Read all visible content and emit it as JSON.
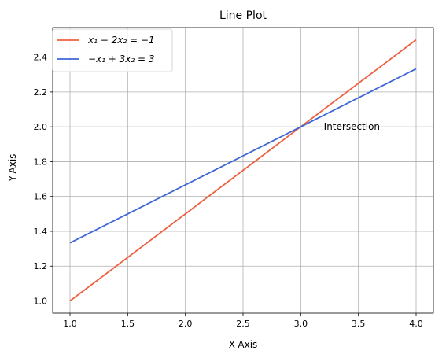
{
  "chart_data": {
    "type": "line",
    "title": "Line Plot",
    "xlabel": "X-Axis",
    "ylabel": "Y-Axis",
    "xlim": [
      0.85,
      4.15
    ],
    "ylim": [
      0.93,
      2.57
    ],
    "x_ticks": [
      1.0,
      1.5,
      2.0,
      2.5,
      3.0,
      3.5,
      4.0
    ],
    "y_ticks": [
      1.0,
      1.2,
      1.4,
      1.6,
      1.8,
      2.0,
      2.2,
      2.4
    ],
    "x_tick_labels": [
      "1.0",
      "1.5",
      "2.0",
      "2.5",
      "3.0",
      "3.5",
      "4.0"
    ],
    "y_tick_labels": [
      "1.0",
      "1.2",
      "1.4",
      "1.6",
      "1.8",
      "2.0",
      "2.2",
      "2.4"
    ],
    "grid": true,
    "legend_position": "top-left",
    "series": [
      {
        "name": "x₁ − 2x₂ = −1",
        "color": "#f05f40",
        "x": [
          1.0,
          4.0
        ],
        "y": [
          1.0,
          2.5
        ]
      },
      {
        "name": "−x₁ + 3x₂ = 3",
        "color": "#3d66d8",
        "x": [
          1.0,
          4.0
        ],
        "y": [
          1.3333,
          2.3333
        ]
      }
    ],
    "annotations": [
      {
        "text": "Intersection",
        "x": 3.2,
        "y": 2.0
      }
    ]
  }
}
